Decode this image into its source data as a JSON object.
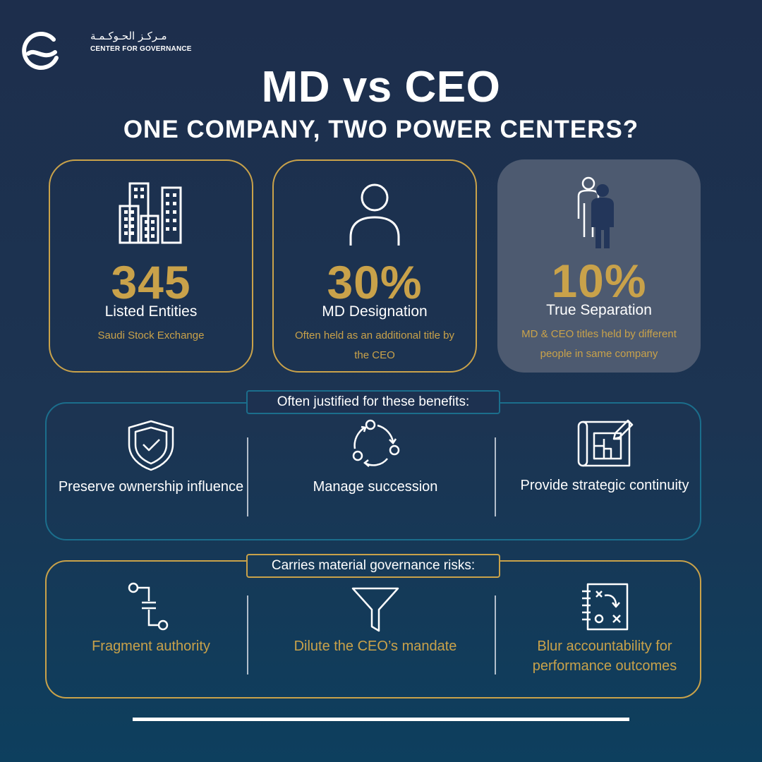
{
  "logo": {
    "arabic": "مـركـز الحـوكـمـة",
    "english": "CENTER FOR GOVERNANCE"
  },
  "title": "MD vs CEO",
  "subtitle": "ONE COMPANY, TWO POWER CENTERS?",
  "colors": {
    "gold": "#c9a24a",
    "teal": "#1b6e8c",
    "background_top": "#1d2e4c",
    "background_bottom": "#0d3f5e",
    "highlight_card": "#4d5a70"
  },
  "stats": [
    {
      "icon": "buildings-icon",
      "value": "345",
      "label": "Listed Entities",
      "desc": "Saudi Stock Exchange"
    },
    {
      "icon": "person-icon",
      "value": "30%",
      "label": "MD Designation",
      "desc": "Often held as an additional title by the CEO"
    },
    {
      "icon": "two-people-icon",
      "value": "10%",
      "label": "True Separation",
      "desc": "MD & CEO titles held by different people in same company"
    }
  ],
  "benefits": {
    "heading": "Often justified for these benefits:",
    "items": [
      {
        "icon": "shield-check-icon",
        "label": "Preserve ownership influence"
      },
      {
        "icon": "cycle-arrows-icon",
        "label": "Manage succession"
      },
      {
        "icon": "blueprint-icon",
        "label": "Provide strategic continuity"
      }
    ]
  },
  "risks": {
    "heading": "Carries material governance risks:",
    "items": [
      {
        "icon": "broken-connection-icon",
        "label": "Fragment authority"
      },
      {
        "icon": "funnel-icon",
        "label": "Dilute the CEO’s mandate"
      },
      {
        "icon": "strategy-board-icon",
        "label": "Blur accountability for performance outcomes"
      }
    ]
  }
}
